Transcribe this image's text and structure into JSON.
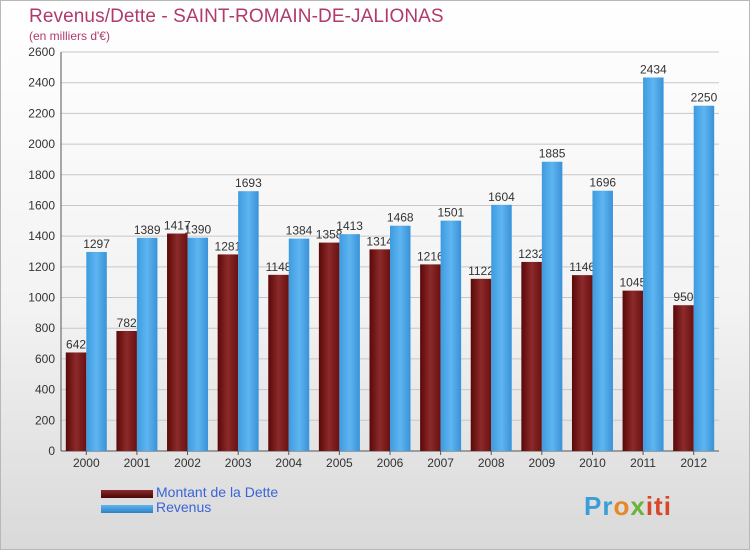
{
  "chart_data": {
    "type": "bar",
    "title": "Revenus/Dette - SAINT-ROMAIN-DE-JALIONAS",
    "subtitle": "(en milliers d'€)",
    "categories": [
      "2000",
      "2001",
      "2002",
      "2003",
      "2004",
      "2005",
      "2006",
      "2007",
      "2008",
      "2009",
      "2010",
      "2011",
      "2012"
    ],
    "series": [
      {
        "name": "Montant de la Dette",
        "color": "#6b0f0f",
        "values": [
          642,
          782,
          1417,
          1281,
          1148,
          1358,
          1314,
          1216,
          1122,
          1232,
          1146,
          1045,
          950
        ]
      },
      {
        "name": "Revenus",
        "color": "#3f9fe2",
        "values": [
          1297,
          1389,
          1390,
          1693,
          1384,
          1413,
          1468,
          1501,
          1604,
          1885,
          1696,
          2434,
          2250
        ]
      }
    ],
    "ylim": [
      0,
      2600
    ],
    "yticks": [
      0,
      200,
      400,
      600,
      800,
      1000,
      1200,
      1400,
      1600,
      1800,
      2000,
      2200,
      2400,
      2600
    ],
    "grid": true,
    "legend": "bottom-left"
  },
  "logo": {
    "p1": "Pr",
    "p2": "o",
    "p3": "x",
    "p4": "iti"
  }
}
